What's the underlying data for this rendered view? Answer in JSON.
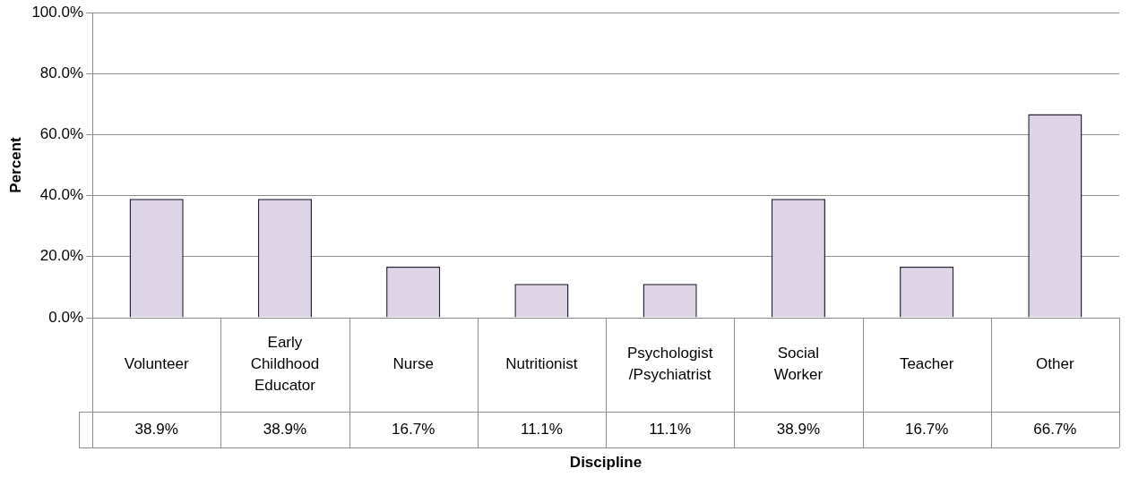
{
  "chart_data": {
    "type": "bar",
    "xlabel": "Discipline",
    "ylabel": "Percent",
    "categories": [
      "Volunteer",
      "Early Childhood Educator",
      "Nurse",
      "Nutritionist",
      "Psychologist/Psychiatrist",
      "Social Worker",
      "Teacher",
      "Other"
    ],
    "values": [
      38.9,
      38.9,
      16.7,
      11.1,
      11.1,
      38.9,
      16.7,
      66.7
    ],
    "value_labels": [
      "38.9%",
      "38.9%",
      "16.7%",
      "11.1%",
      "11.1%",
      "38.9%",
      "16.7%",
      "66.7%"
    ],
    "color": "#ddd5e6",
    "ylim": [
      0,
      100
    ],
    "yticks": [
      {
        "value": 0,
        "label": "0.0%"
      },
      {
        "value": 20,
        "label": "20.0%"
      },
      {
        "value": 40,
        "label": "40.0%"
      },
      {
        "value": 60,
        "label": "60.0%"
      },
      {
        "value": 80,
        "label": "80.0%"
      },
      {
        "value": 100,
        "label": "100.0%"
      }
    ],
    "grid": "y",
    "legend": false
  }
}
